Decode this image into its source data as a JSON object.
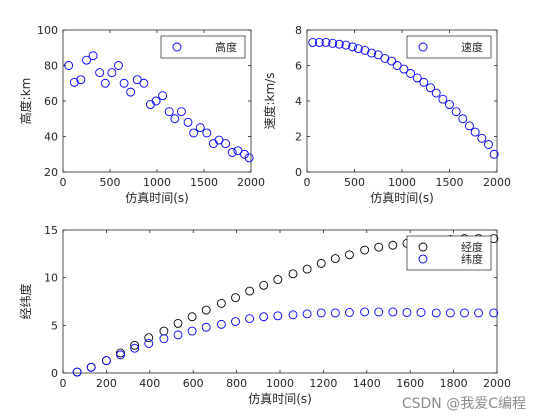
{
  "watermark": "CSDN @我爱C编程",
  "chart_data": [
    {
      "type": "scatter",
      "xlabel": "仿真时间(s)",
      "ylabel": "高度:km",
      "xlim": [
        0,
        2000
      ],
      "ylim": [
        20,
        100
      ],
      "xticks": [
        0,
        500,
        1000,
        1500,
        2000
      ],
      "yticks": [
        20,
        40,
        60,
        80,
        100
      ],
      "legend": "top-right",
      "grid": false,
      "series": [
        {
          "name": "高度",
          "color": "#0000ff",
          "x": [
            60,
            120,
            190,
            250,
            320,
            390,
            450,
            520,
            590,
            650,
            720,
            790,
            860,
            930,
            990,
            1060,
            1130,
            1190,
            1260,
            1330,
            1390,
            1460,
            1530,
            1600,
            1660,
            1730,
            1800,
            1860,
            1930,
            1980
          ],
          "y": [
            80,
            70.5,
            72,
            83,
            85.5,
            76,
            70,
            76,
            80,
            70,
            65,
            72,
            70,
            58,
            60,
            63,
            54,
            50,
            54,
            48,
            42,
            45,
            42,
            36,
            38,
            36,
            31,
            32,
            30,
            28
          ]
        }
      ]
    },
    {
      "type": "scatter",
      "xlabel": "仿真时间(s)",
      "ylabel": "速度:km/s",
      "xlim": [
        0,
        2000
      ],
      "ylim": [
        0,
        8
      ],
      "xticks": [
        0,
        500,
        1000,
        1500,
        2000
      ],
      "yticks": [
        0,
        2,
        4,
        6,
        8
      ],
      "legend": "top-right",
      "grid": false,
      "series": [
        {
          "name": "速度",
          "color": "#0000ff",
          "x": [
            60,
            130,
            200,
            270,
            340,
            410,
            480,
            540,
            610,
            680,
            750,
            820,
            890,
            950,
            1020,
            1090,
            1160,
            1230,
            1300,
            1360,
            1430,
            1500,
            1570,
            1640,
            1710,
            1770,
            1840,
            1910,
            1970
          ],
          "y": [
            7.3,
            7.3,
            7.3,
            7.25,
            7.2,
            7.15,
            7.05,
            6.95,
            6.85,
            6.7,
            6.6,
            6.4,
            6.25,
            6.0,
            5.8,
            5.55,
            5.3,
            5.05,
            4.75,
            4.45,
            4.1,
            3.8,
            3.4,
            3.0,
            2.6,
            2.25,
            1.9,
            1.55,
            1.0
          ]
        }
      ]
    },
    {
      "type": "scatter",
      "xlabel": "仿真时间(s)",
      "ylabel": "经纬度",
      "xlim": [
        0,
        2000
      ],
      "ylim": [
        0,
        15
      ],
      "xticks": [
        0,
        200,
        400,
        600,
        800,
        1000,
        1200,
        1400,
        1600,
        1800,
        2000
      ],
      "yticks": [
        0,
        5,
        10,
        15
      ],
      "legend": "top-right",
      "grid": false,
      "series": [
        {
          "name": "经度",
          "color": "#000000",
          "x": [
            65,
            130,
            200,
            265,
            330,
            395,
            465,
            530,
            595,
            660,
            730,
            795,
            860,
            925,
            990,
            1060,
            1125,
            1190,
            1255,
            1320,
            1390,
            1455,
            1520,
            1585,
            1650,
            1720,
            1785,
            1850,
            1915,
            1985
          ],
          "y": [
            0.1,
            0.6,
            1.3,
            2.1,
            2.9,
            3.7,
            4.4,
            5.2,
            5.9,
            6.6,
            7.3,
            7.9,
            8.6,
            9.2,
            9.8,
            10.4,
            10.9,
            11.5,
            12.0,
            12.4,
            12.9,
            13.2,
            13.4,
            13.6,
            13.8,
            13.9,
            14.0,
            14.1,
            14.1,
            14.1
          ]
        },
        {
          "name": "纬度",
          "color": "#0000ff",
          "x": [
            65,
            130,
            200,
            265,
            330,
            395,
            465,
            530,
            595,
            660,
            730,
            795,
            860,
            925,
            990,
            1060,
            1125,
            1190,
            1255,
            1320,
            1390,
            1455,
            1520,
            1585,
            1650,
            1720,
            1785,
            1850,
            1915,
            1985
          ],
          "y": [
            0.1,
            0.6,
            1.3,
            1.9,
            2.6,
            3.1,
            3.6,
            4.0,
            4.4,
            4.8,
            5.1,
            5.4,
            5.7,
            5.9,
            6.0,
            6.1,
            6.2,
            6.3,
            6.3,
            6.35,
            6.4,
            6.4,
            6.4,
            6.35,
            6.35,
            6.3,
            6.3,
            6.3,
            6.3,
            6.3
          ]
        }
      ]
    }
  ]
}
